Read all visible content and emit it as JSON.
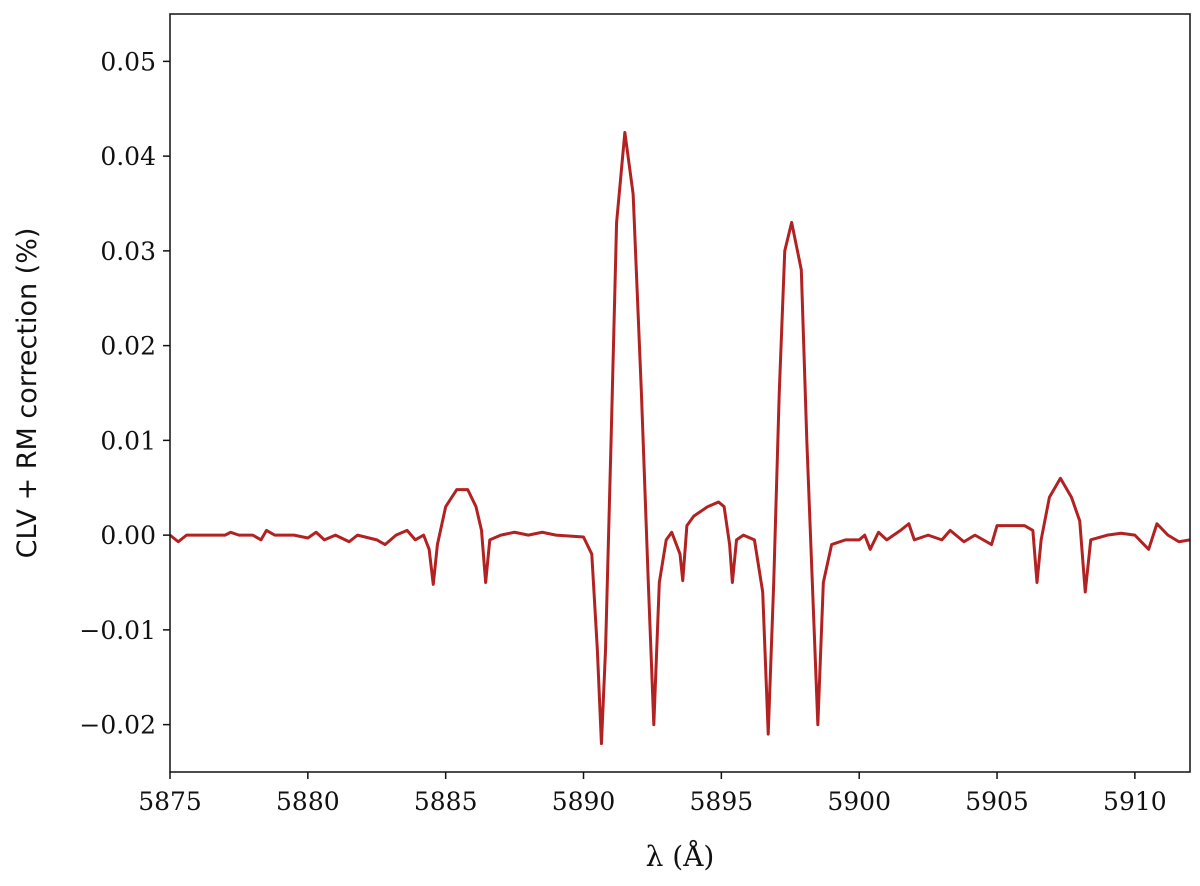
{
  "chart_data": {
    "type": "line",
    "xlabel": "λ (Å)",
    "ylabel": "CLV + RM correction (%)",
    "xlim": [
      5875,
      5912
    ],
    "xticks": [
      5875,
      5880,
      5885,
      5890,
      5895,
      5900,
      5905,
      5910
    ],
    "ylim": [
      -0.025,
      0.055
    ],
    "yticks": [
      {
        "value": -0.02,
        "label": "−0.02"
      },
      {
        "value": -0.01,
        "label": "−0.01"
      },
      {
        "value": 0,
        "label": "0.00"
      },
      0.01,
      0.02,
      0.03,
      0.04,
      0.05
    ],
    "x": [
      5875,
      5875.3,
      5875.6,
      5876,
      5877,
      5877.2,
      5877.5,
      5878,
      5878.3,
      5878.5,
      5878.8,
      5879.5,
      5880,
      5880.3,
      5880.6,
      5881,
      5881.5,
      5881.8,
      5882.5,
      5882.8,
      5883.2,
      5883.6,
      5883.9,
      5884.2,
      5884.4,
      5884.55,
      5884.7,
      5885.0,
      5885.4,
      5885.8,
      5886.1,
      5886.3,
      5886.45,
      5886.6,
      5887,
      5887.5,
      5888,
      5888.5,
      5889,
      5890,
      5890.3,
      5890.5,
      5890.65,
      5890.8,
      5891.0,
      5891.2,
      5891.5,
      5891.8,
      5892.1,
      5892.35,
      5892.55,
      5892.75,
      5893,
      5893.2,
      5893.5,
      5893.6,
      5893.75,
      5894,
      5894.5,
      5894.9,
      5895.1,
      5895.3,
      5895.4,
      5895.55,
      5895.8,
      5896.2,
      5896.5,
      5896.7,
      5896.9,
      5897.1,
      5897.3,
      5897.55,
      5897.9,
      5898.1,
      5898.3,
      5898.5,
      5898.7,
      5899,
      5899.5,
      5900,
      5900.2,
      5900.4,
      5900.7,
      5901,
      5901.5,
      5901.8,
      5902,
      5902.5,
      5903,
      5903.3,
      5903.8,
      5904.2,
      5904.8,
      5905,
      5906,
      5906.3,
      5906.45,
      5906.6,
      5906.9,
      5907.3,
      5907.7,
      5908,
      5908.2,
      5908.4,
      5909,
      5909.5,
      5910,
      5910.5,
      5910.8,
      5911.2,
      5911.6,
      5912
    ],
    "series": [
      {
        "name": "CLV + RM correction",
        "color": "#b22222",
        "values": [
          0,
          -0.0007,
          0,
          0,
          0,
          0.0003,
          0,
          0,
          -0.0005,
          0.0005,
          0,
          0,
          -0.0003,
          0.0003,
          -0.0005,
          0,
          -0.0007,
          0,
          -0.0005,
          -0.001,
          0,
          0.0005,
          -0.0005,
          0,
          -0.0015,
          -0.0052,
          -0.001,
          0.003,
          0.0048,
          0.0048,
          0.003,
          0.0005,
          -0.005,
          -0.0005,
          0,
          0.0003,
          0,
          0.0003,
          0,
          -0.0002,
          -0.002,
          -0.012,
          -0.022,
          -0.012,
          0.01,
          0.033,
          0.0425,
          0.036,
          0.015,
          -0.005,
          -0.02,
          -0.005,
          -0.0005,
          0.0003,
          -0.002,
          -0.0048,
          0.001,
          0.002,
          0.003,
          0.0035,
          0.003,
          -0.001,
          -0.005,
          -0.0005,
          0,
          -0.0005,
          -0.006,
          -0.021,
          -0.005,
          0.015,
          0.03,
          0.033,
          0.028,
          0.01,
          -0.005,
          -0.02,
          -0.005,
          -0.001,
          -0.0005,
          -0.0005,
          0,
          -0.0015,
          0.0003,
          -0.0005,
          0.0005,
          0.0012,
          -0.0005,
          0,
          -0.0005,
          0.0005,
          -0.0007,
          0,
          -0.001,
          0.001,
          0.001,
          0.0005,
          -0.005,
          -0.0005,
          0.004,
          0.006,
          0.004,
          0.0015,
          -0.006,
          -0.0005,
          0,
          0.0002,
          0,
          -0.0015,
          0.0012,
          0,
          -0.0007,
          -0.0005
        ]
      }
    ]
  }
}
